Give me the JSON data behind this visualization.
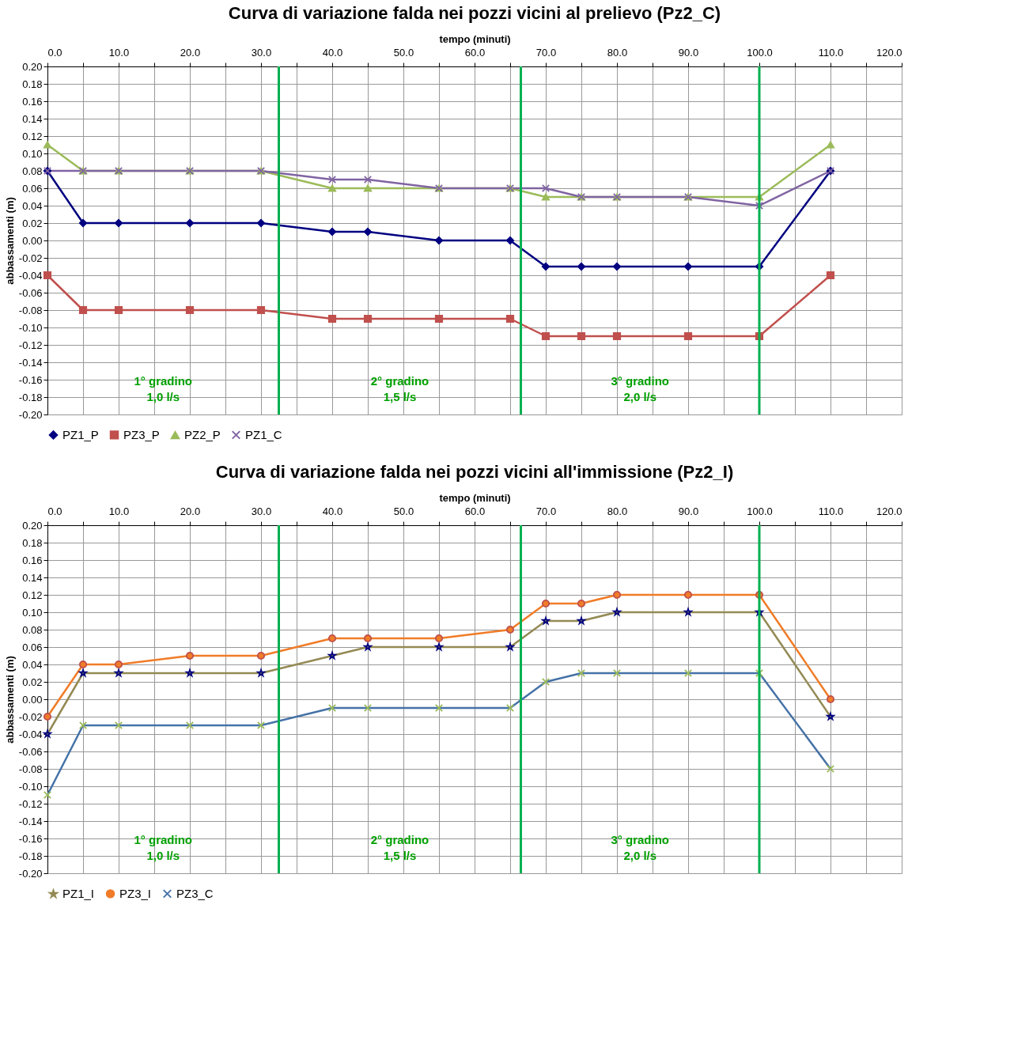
{
  "chart_data": [
    {
      "type": "line",
      "title": "Curva di variazione falda nei pozzi vicini al prelievo (Pz2_C)",
      "xlabel": "tempo (minuti)",
      "ylabel": "abbassamenti (m)",
      "x": [
        0,
        5,
        10,
        20,
        30,
        40,
        45,
        55,
        65,
        70,
        75,
        80,
        90,
        100,
        110
      ],
      "series": [
        {
          "name": "PZ1_P",
          "color": "#000080",
          "marker": "diamond",
          "values": [
            0.08,
            0.02,
            0.02,
            0.02,
            0.02,
            0.01,
            0.01,
            0.0,
            0.0,
            -0.03,
            -0.03,
            -0.03,
            -0.03,
            -0.03,
            0.08
          ]
        },
        {
          "name": "PZ3_P",
          "color": "#c0504d",
          "marker": "square",
          "values": [
            -0.04,
            -0.08,
            -0.08,
            -0.08,
            -0.08,
            -0.09,
            -0.09,
            -0.09,
            -0.09,
            -0.11,
            -0.11,
            -0.11,
            -0.11,
            -0.11,
            -0.04
          ]
        },
        {
          "name": "PZ2_P",
          "color": "#9bbb59",
          "marker": "triangle",
          "values": [
            0.11,
            0.08,
            0.08,
            0.08,
            0.08,
            0.06,
            0.06,
            0.06,
            0.06,
            0.05,
            0.05,
            0.05,
            0.05,
            0.05,
            0.11
          ]
        },
        {
          "name": "PZ1_C",
          "color": "#8064a2",
          "marker": "cross",
          "values": [
            0.08,
            0.08,
            0.08,
            0.08,
            0.08,
            0.07,
            0.07,
            0.06,
            0.06,
            0.06,
            0.05,
            0.05,
            0.05,
            0.04,
            0.08
          ]
        }
      ],
      "xlim": [
        0,
        120
      ],
      "xticks": [
        {
          "value": 0,
          "label": "0.0"
        },
        {
          "value": 5,
          "label": null
        },
        {
          "value": 10,
          "label": "10.0"
        },
        {
          "value": 15,
          "label": null
        },
        {
          "value": 20,
          "label": "20.0"
        },
        {
          "value": 25,
          "label": null
        },
        {
          "value": 30,
          "label": "30.0"
        },
        {
          "value": 35,
          "label": null
        },
        {
          "value": 40,
          "label": "40.0"
        },
        {
          "value": 45,
          "label": null
        },
        {
          "value": 50,
          "label": "50.0"
        },
        {
          "value": 55,
          "label": null
        },
        {
          "value": 60,
          "label": "60.0"
        },
        {
          "value": 65,
          "label": null
        },
        {
          "value": 70,
          "label": "70.0"
        },
        {
          "value": 75,
          "label": null
        },
        {
          "value": 80,
          "label": "80.0"
        },
        {
          "value": 85,
          "label": null
        },
        {
          "value": 90,
          "label": "90.0"
        },
        {
          "value": 95,
          "label": null
        },
        {
          "value": 100,
          "label": "100.0"
        },
        {
          "value": 105,
          "label": null
        },
        {
          "value": 110,
          "label": "110.0"
        },
        {
          "value": 115,
          "label": null
        },
        {
          "value": 120,
          "label": "120.0"
        }
      ],
      "ylim": [
        -0.2,
        0.2
      ],
      "yticks": [
        {
          "value": -0.2,
          "label": "-0.20"
        },
        {
          "value": -0.18,
          "label": "-0.18"
        },
        {
          "value": -0.16,
          "label": "-0.16"
        },
        {
          "value": -0.14,
          "label": "-0.14"
        },
        {
          "value": -0.12,
          "label": "-0.12"
        },
        {
          "value": -0.1,
          "label": "-0.10"
        },
        {
          "value": -0.08,
          "label": "-0.08"
        },
        {
          "value": -0.06,
          "label": "-0.06"
        },
        {
          "value": -0.04,
          "label": "-0.04"
        },
        {
          "value": -0.02,
          "label": "-0.02"
        },
        {
          "value": 0,
          "label": "0.00"
        },
        {
          "value": 0.02,
          "label": "0.02"
        },
        {
          "value": 0.04,
          "label": "0.04"
        },
        {
          "value": 0.06,
          "label": "0.06"
        },
        {
          "value": 0.08,
          "label": "0.08"
        },
        {
          "value": 0.1,
          "label": "0.10"
        },
        {
          "value": 0.12,
          "label": "0.12"
        },
        {
          "value": 0.14,
          "label": "0.14"
        },
        {
          "value": 0.16,
          "label": "0.16"
        },
        {
          "value": 0.18,
          "label": "0.18"
        },
        {
          "value": 0.2,
          "label": "0.20"
        }
      ],
      "grid": true,
      "legend": "bottom",
      "ref_lines": [
        {
          "axis": "x",
          "value": 32.5,
          "color": "#00b050"
        },
        {
          "axis": "x",
          "value": 66.5,
          "color": "#00b050"
        },
        {
          "axis": "x",
          "value": 100,
          "color": "#00b050"
        }
      ],
      "annotations": [
        "1° gradino\n1,0 l/s",
        "2° gradino\n1,5 l/s",
        "3° gradino\n2,0 l/s"
      ]
    },
    {
      "type": "line",
      "title": "Curva di variazione falda nei pozzi vicini all'immissione (Pz2_I)",
      "xlabel": "tempo (minuti)",
      "ylabel": "abbassamenti (m)",
      "x": [
        0,
        5,
        10,
        20,
        30,
        40,
        45,
        55,
        65,
        70,
        75,
        80,
        90,
        100,
        110
      ],
      "series": [
        {
          "name": "PZ1_I",
          "color": "#948a54",
          "marker": "star",
          "values": [
            -0.04,
            0.03,
            0.03,
            0.03,
            0.03,
            0.05,
            0.06,
            0.06,
            0.06,
            0.09,
            0.09,
            0.1,
            0.1,
            0.1,
            -0.02
          ]
        },
        {
          "name": "PZ3_I",
          "color": "#f07c28",
          "marker": "circle",
          "values": [
            -0.02,
            0.04,
            0.04,
            0.05,
            0.05,
            0.07,
            0.07,
            0.07,
            0.08,
            0.11,
            0.11,
            0.12,
            0.12,
            0.12,
            0.0
          ]
        },
        {
          "name": "PZ3_C",
          "color": "#4572a7",
          "marker": "cross",
          "values": [
            -0.11,
            -0.03,
            -0.03,
            -0.03,
            -0.03,
            -0.01,
            -0.01,
            -0.01,
            -0.01,
            0.02,
            0.03,
            0.03,
            0.03,
            0.03,
            -0.08
          ]
        }
      ],
      "xlim": [
        0,
        120
      ],
      "xticks": [
        {
          "value": 0,
          "label": "0.0"
        },
        {
          "value": 5,
          "label": null
        },
        {
          "value": 10,
          "label": "10.0"
        },
        {
          "value": 15,
          "label": null
        },
        {
          "value": 20,
          "label": "20.0"
        },
        {
          "value": 25,
          "label": null
        },
        {
          "value": 30,
          "label": "30.0"
        },
        {
          "value": 35,
          "label": null
        },
        {
          "value": 40,
          "label": "40.0"
        },
        {
          "value": 45,
          "label": null
        },
        {
          "value": 50,
          "label": "50.0"
        },
        {
          "value": 55,
          "label": null
        },
        {
          "value": 60,
          "label": "60.0"
        },
        {
          "value": 65,
          "label": null
        },
        {
          "value": 70,
          "label": "70.0"
        },
        {
          "value": 75,
          "label": null
        },
        {
          "value": 80,
          "label": "80.0"
        },
        {
          "value": 85,
          "label": null
        },
        {
          "value": 90,
          "label": "90.0"
        },
        {
          "value": 95,
          "label": null
        },
        {
          "value": 100,
          "label": "100.0"
        },
        {
          "value": 105,
          "label": null
        },
        {
          "value": 110,
          "label": "110.0"
        },
        {
          "value": 115,
          "label": null
        },
        {
          "value": 120,
          "label": "120.0"
        }
      ],
      "ylim": [
        -0.2,
        0.2
      ],
      "yticks": [
        {
          "value": -0.2,
          "label": "-0.20"
        },
        {
          "value": -0.18,
          "label": "-0.18"
        },
        {
          "value": -0.16,
          "label": "-0.16"
        },
        {
          "value": -0.14,
          "label": "-0.14"
        },
        {
          "value": -0.12,
          "label": "-0.12"
        },
        {
          "value": -0.1,
          "label": "-0.10"
        },
        {
          "value": -0.08,
          "label": "-0.08"
        },
        {
          "value": -0.06,
          "label": "-0.06"
        },
        {
          "value": -0.04,
          "label": "-0.04"
        },
        {
          "value": -0.02,
          "label": "-0.02"
        },
        {
          "value": 0,
          "label": "0.00"
        },
        {
          "value": 0.02,
          "label": "0.02"
        },
        {
          "value": 0.04,
          "label": "0.04"
        },
        {
          "value": 0.06,
          "label": "0.06"
        },
        {
          "value": 0.08,
          "label": "0.08"
        },
        {
          "value": 0.1,
          "label": "0.10"
        },
        {
          "value": 0.12,
          "label": "0.12"
        },
        {
          "value": 0.14,
          "label": "0.14"
        },
        {
          "value": 0.16,
          "label": "0.16"
        },
        {
          "value": 0.18,
          "label": "0.18"
        },
        {
          "value": 0.2,
          "label": "0.20"
        }
      ],
      "grid": true,
      "legend": "bottom",
      "ref_lines": [
        {
          "axis": "x",
          "value": 32.5,
          "color": "#00b050"
        },
        {
          "axis": "x",
          "value": 66.5,
          "color": "#00b050"
        },
        {
          "axis": "x",
          "value": 100,
          "color": "#00b050"
        }
      ],
      "annotations": [
        "1° gradino\n1,0 l/s",
        "2° gradino\n1,5 l/s",
        "3° gradino\n2,0 l/s"
      ]
    }
  ]
}
